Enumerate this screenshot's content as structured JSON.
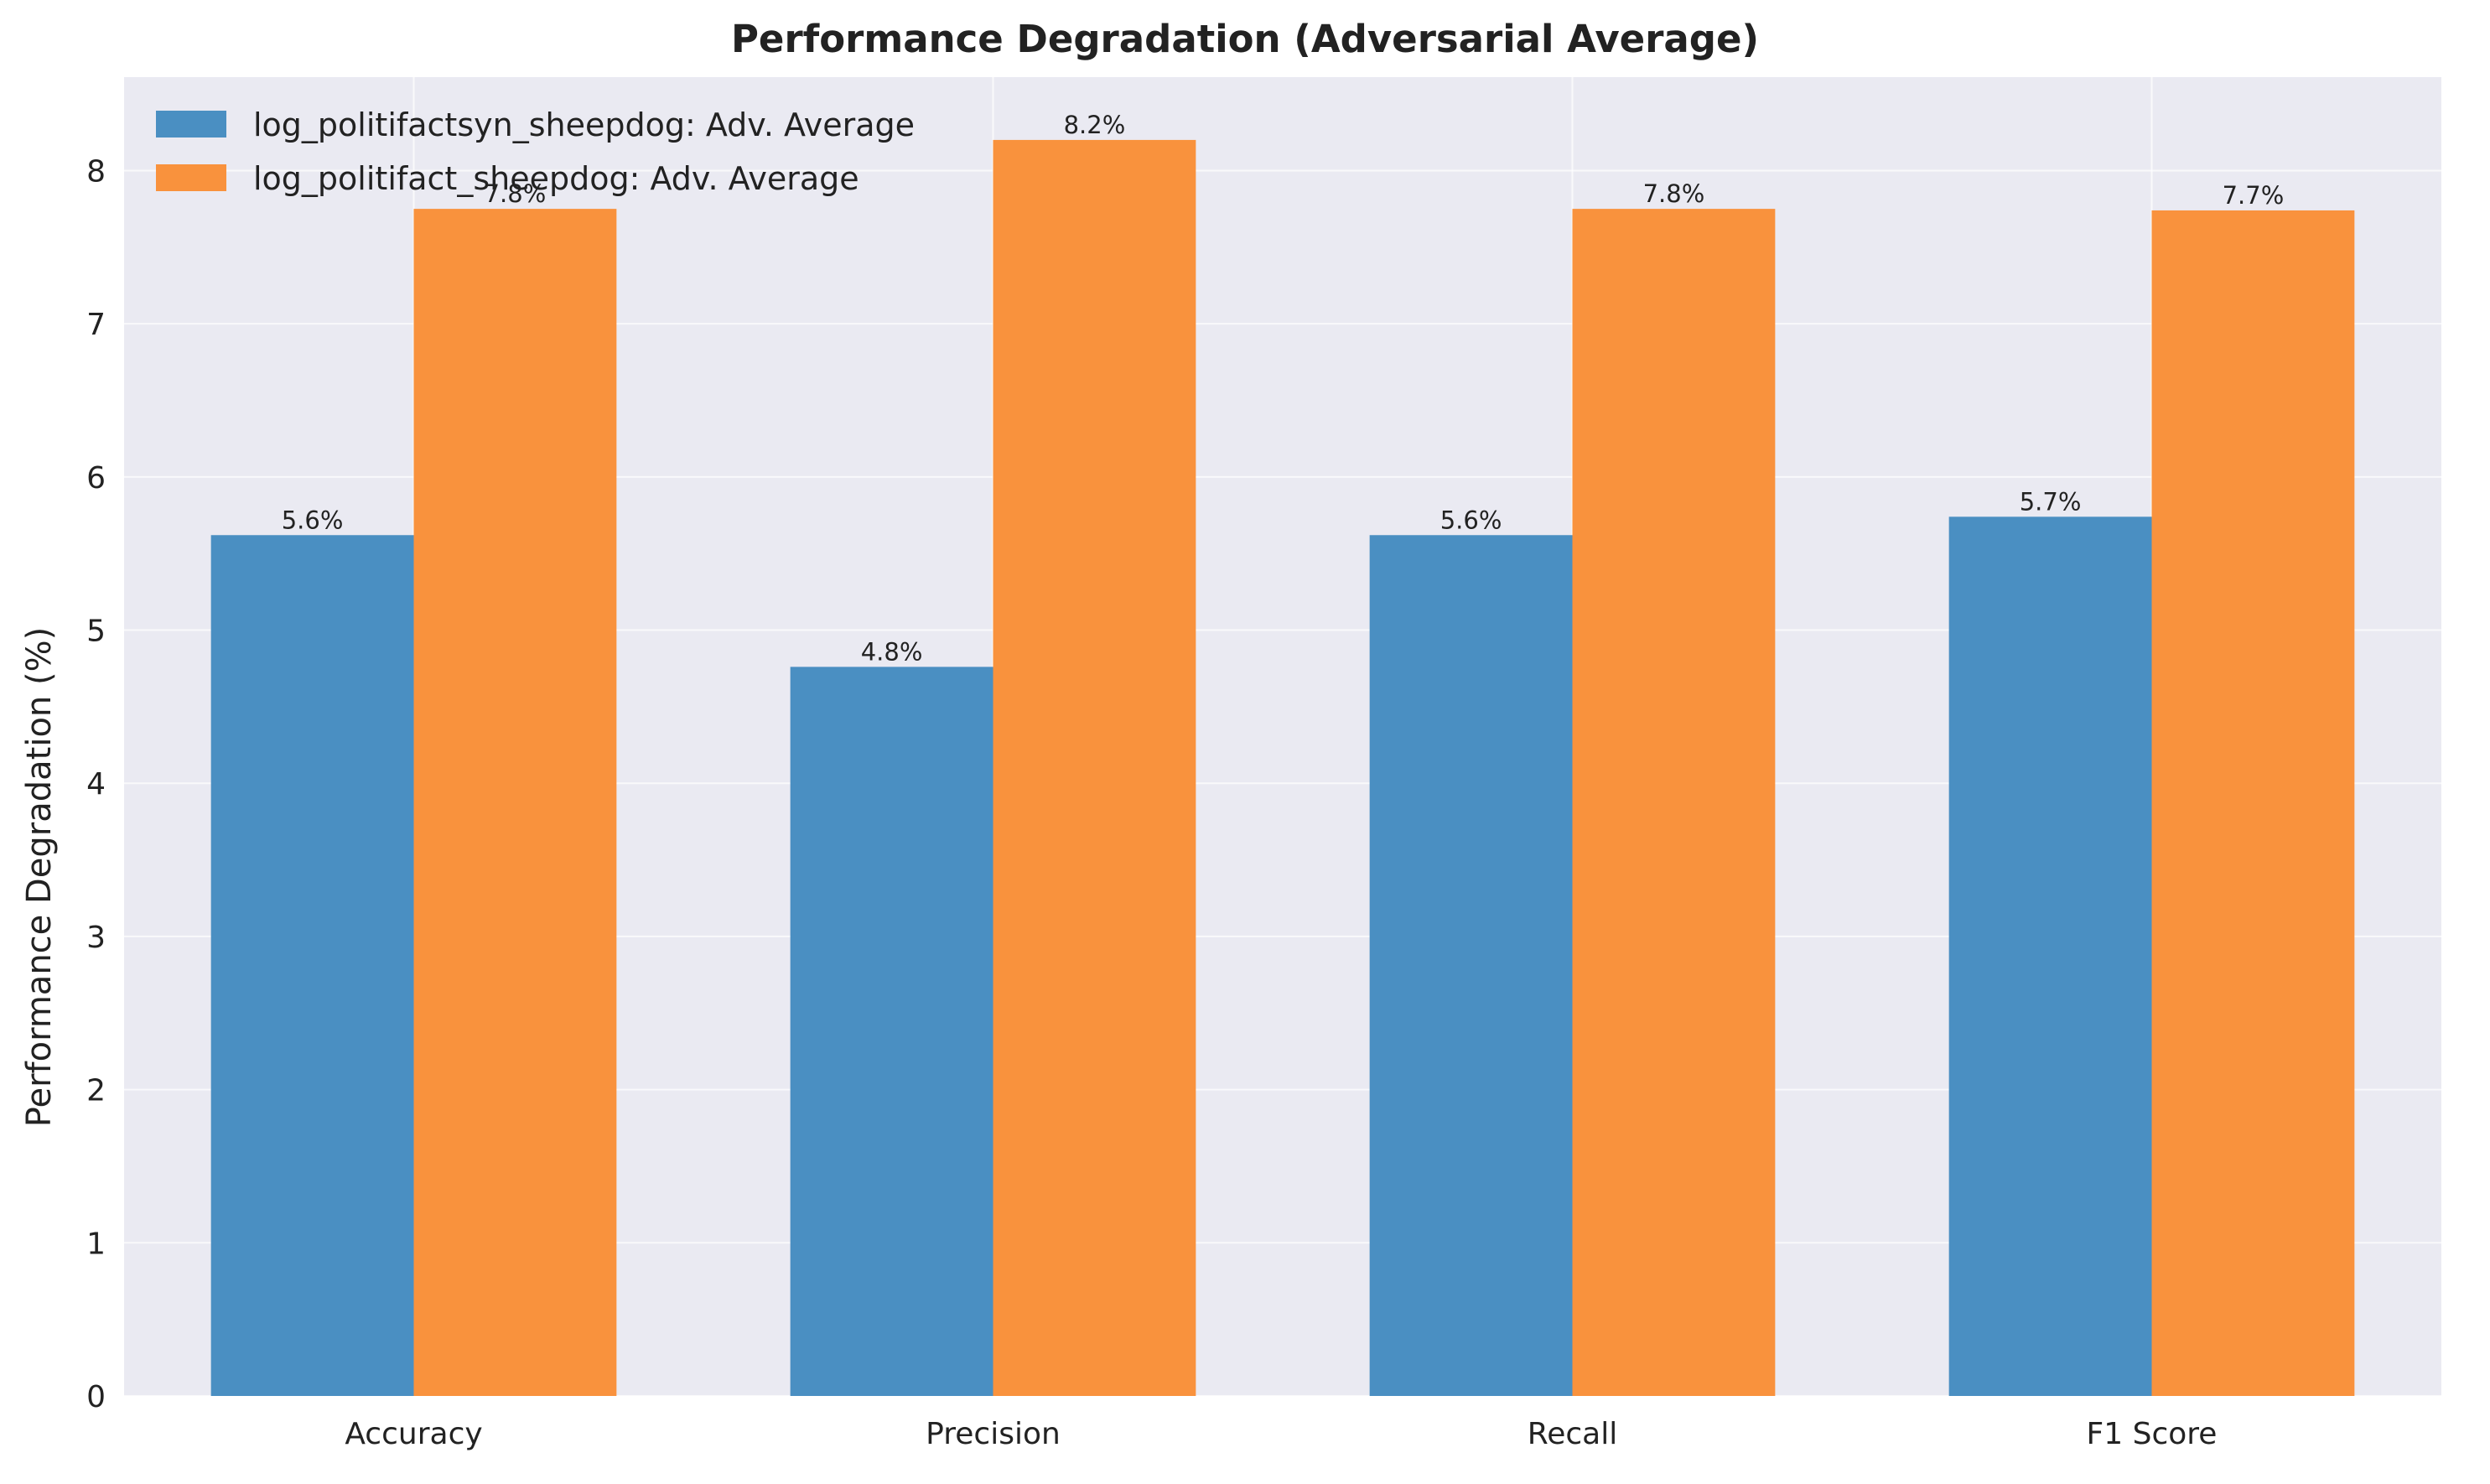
{
  "chart_data": {
    "type": "bar",
    "title": "Performance Degradation (Adversarial Average)",
    "xlabel": "",
    "ylabel": "Performance Degradation (%)",
    "categories": [
      "Accuracy",
      "Precision",
      "Recall",
      "F1 Score"
    ],
    "series": [
      {
        "name": "log_politifactsyn_sheepdog: Adv. Average",
        "values": [
          5.62,
          4.76,
          5.62,
          5.74
        ],
        "labels": [
          "5.6%",
          "4.8%",
          "5.6%",
          "5.7%"
        ],
        "color": "#4a8fc2"
      },
      {
        "name": "log_politifact_sheepdog: Adv. Average",
        "values": [
          7.75,
          8.2,
          7.75,
          7.74
        ],
        "labels": [
          "7.8%",
          "8.2%",
          "7.8%",
          "7.7%"
        ],
        "color": "#f9923d"
      }
    ],
    "ylim": [
      0,
      8.61
    ],
    "yticks": [
      0,
      1,
      2,
      3,
      4,
      5,
      6,
      7,
      8
    ],
    "grid": true,
    "legend_position": "top-left",
    "plot_background": "#eaeaf2",
    "grid_color": "#ffffff"
  }
}
